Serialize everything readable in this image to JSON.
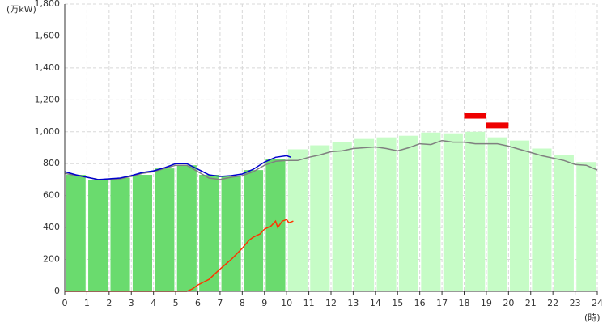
{
  "chart_data": {
    "type": "combo",
    "y_label": "(万kW)",
    "x_label": "(時)",
    "xlim": [
      0,
      24
    ],
    "ylim": [
      0,
      1800
    ],
    "xticks": [
      0,
      1,
      2,
      3,
      4,
      5,
      6,
      7,
      8,
      9,
      10,
      11,
      12,
      13,
      14,
      15,
      16,
      17,
      18,
      19,
      20,
      21,
      22,
      23,
      24
    ],
    "yticks": [
      0,
      200,
      400,
      600,
      800,
      {
        "value": 1000,
        "label": "1,000"
      },
      {
        "value": 1200,
        "label": "1,200"
      },
      {
        "value": 1400,
        "label": "1,400"
      },
      {
        "value": 1600,
        "label": "1,600"
      },
      {
        "value": 1800,
        "label": "1,800"
      }
    ],
    "grid": true,
    "bars": [
      {
        "color": "#6adb6e",
        "x": [
          0,
          1,
          2,
          3,
          4,
          5,
          6,
          7,
          8,
          9
        ],
        "values": [
          730,
          700,
          710,
          730,
          770,
          790,
          730,
          720,
          760,
          830
        ]
      },
      {
        "color": "#c6fcc6",
        "x": [
          10,
          11,
          12,
          13,
          14,
          15,
          16,
          17,
          18,
          19,
          20,
          21,
          22,
          23
        ],
        "values": [
          890,
          915,
          935,
          955,
          965,
          975,
          995,
          990,
          1000,
          965,
          945,
          895,
          855,
          810
        ]
      }
    ],
    "lines": [
      {
        "color": "#808080",
        "x": [
          0,
          0.5,
          1,
          1.5,
          2,
          2.5,
          3,
          3.5,
          4,
          4.5,
          5,
          5.5,
          6,
          6.5,
          7,
          7.5,
          8,
          8.5,
          9,
          9.5,
          10,
          10.5,
          11,
          11.5,
          12,
          12.5,
          13,
          13.5,
          14,
          14.5,
          15,
          15.5,
          16,
          16.5,
          17,
          17.5,
          18,
          18.5,
          19,
          19.5,
          20,
          20.5,
          21,
          21.5,
          22,
          22.5,
          23,
          23.5,
          24
        ],
        "values": [
          740,
          725,
          715,
          700,
          700,
          705,
          720,
          740,
          750,
          770,
          790,
          790,
          750,
          710,
          700,
          715,
          725,
          750,
          790,
          815,
          820,
          820,
          840,
          855,
          875,
          880,
          895,
          900,
          905,
          895,
          880,
          900,
          925,
          920,
          945,
          935,
          935,
          925,
          925,
          925,
          910,
          890,
          870,
          850,
          835,
          820,
          795,
          790,
          760
        ]
      },
      {
        "color": "#0000cc",
        "x": [
          0,
          0.5,
          1,
          1.5,
          2,
          2.5,
          3,
          3.5,
          4,
          4.5,
          5,
          5.5,
          6,
          6.5,
          7,
          7.5,
          8,
          8.5,
          9,
          9.5,
          10,
          10.2
        ],
        "values": [
          750,
          730,
          715,
          700,
          705,
          710,
          725,
          745,
          755,
          775,
          800,
          800,
          765,
          730,
          720,
          725,
          735,
          765,
          810,
          840,
          850,
          840
        ]
      },
      {
        "color": "#ff3300",
        "x": [
          0,
          5.5,
          5.75,
          6,
          6.5,
          7,
          7.5,
          8,
          8.3,
          8.5,
          8.8,
          9,
          9.3,
          9.5,
          9.6,
          9.8,
          10,
          10.1,
          10.3
        ],
        "values": [
          0,
          0,
          15,
          40,
          75,
          140,
          200,
          270,
          320,
          340,
          360,
          390,
          410,
          440,
          400,
          440,
          450,
          430,
          440
        ]
      }
    ],
    "markers": {
      "color": "#ee0000",
      "x0": [
        18,
        19
      ],
      "x1": [
        19,
        20
      ],
      "values": [
        1100,
        1040
      ]
    }
  }
}
